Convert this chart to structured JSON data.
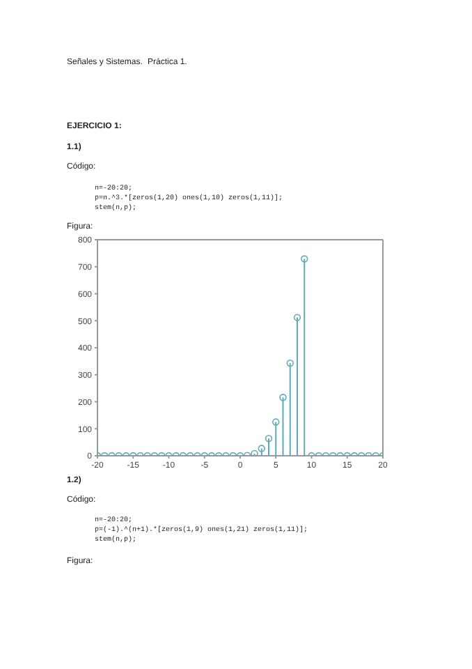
{
  "chart_data": {
    "type": "lollipop",
    "x": [
      -20,
      -19,
      -18,
      -17,
      -16,
      -15,
      -14,
      -13,
      -12,
      -11,
      -10,
      -9,
      -8,
      -7,
      -6,
      -5,
      -4,
      -3,
      -2,
      -1,
      0,
      1,
      2,
      3,
      4,
      5,
      6,
      7,
      8,
      9,
      10,
      11,
      12,
      13,
      14,
      15,
      16,
      17,
      18,
      19,
      20
    ],
    "values": [
      0,
      0,
      0,
      0,
      0,
      0,
      0,
      0,
      0,
      0,
      0,
      0,
      0,
      0,
      0,
      0,
      0,
      0,
      0,
      0,
      0,
      1,
      8,
      27,
      64,
      125,
      216,
      343,
      512,
      729,
      0,
      0,
      0,
      0,
      0,
      0,
      0,
      0,
      0,
      0,
      0
    ],
    "color": "#5ea9b6",
    "marker": "circle",
    "xlim": [
      -20,
      20
    ],
    "xticks": [
      -20,
      -15,
      -10,
      -5,
      0,
      5,
      10,
      15,
      20
    ],
    "ylim": [
      0,
      800
    ],
    "yticks": [
      0,
      100,
      200,
      300,
      400,
      500,
      600,
      700,
      800
    ],
    "grid": false,
    "annotations": [
      "Señales y Sistemas.",
      "Práctica 1.",
      "EJERCICIO 1:",
      "1.1)",
      "Código:",
      "n=-20:20;",
      "p=n.^3.*[zeros(1,20) ones(1,10) zeros(1,11)];",
      "stem(n,p);",
      "Figura:",
      "1.2)",
      "Código:",
      "n=-20:20;",
      "p=(-1).^(n+1).*[zeros(1,9) ones(1,21) zeros(1,11)];",
      "stem(n,p);",
      "Figura:"
    ]
  }
}
